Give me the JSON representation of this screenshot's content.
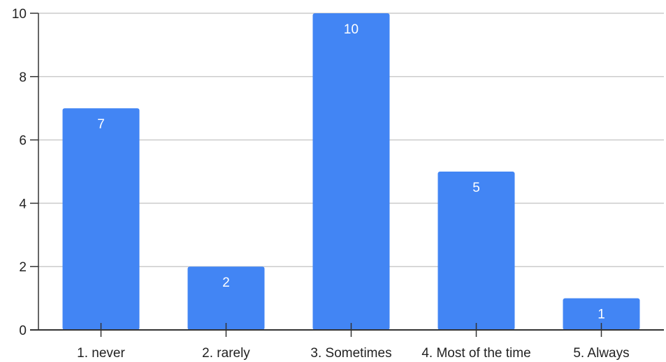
{
  "chart_data": {
    "type": "bar",
    "title": "",
    "xlabel": "",
    "ylabel": "",
    "categories": [
      "1. never",
      "2. rarely",
      "3. Sometimes",
      "4. Most of the time",
      "5. Always"
    ],
    "values": [
      7,
      2,
      10,
      5,
      1
    ],
    "data_labels": [
      "7",
      "2",
      "10",
      "5",
      "1"
    ],
    "ylim": [
      0,
      10
    ],
    "yticks": [
      0,
      2,
      4,
      6,
      8,
      10
    ],
    "ytick_labels": [
      "0",
      "2",
      "4",
      "6",
      "8",
      "10"
    ],
    "grid": true,
    "legend": "none",
    "colors": {
      "bar": "#4285f4",
      "grid": "#cccccc",
      "axis": "#333333",
      "bar_label": "#ffffff",
      "tick_label": "#222222"
    }
  }
}
